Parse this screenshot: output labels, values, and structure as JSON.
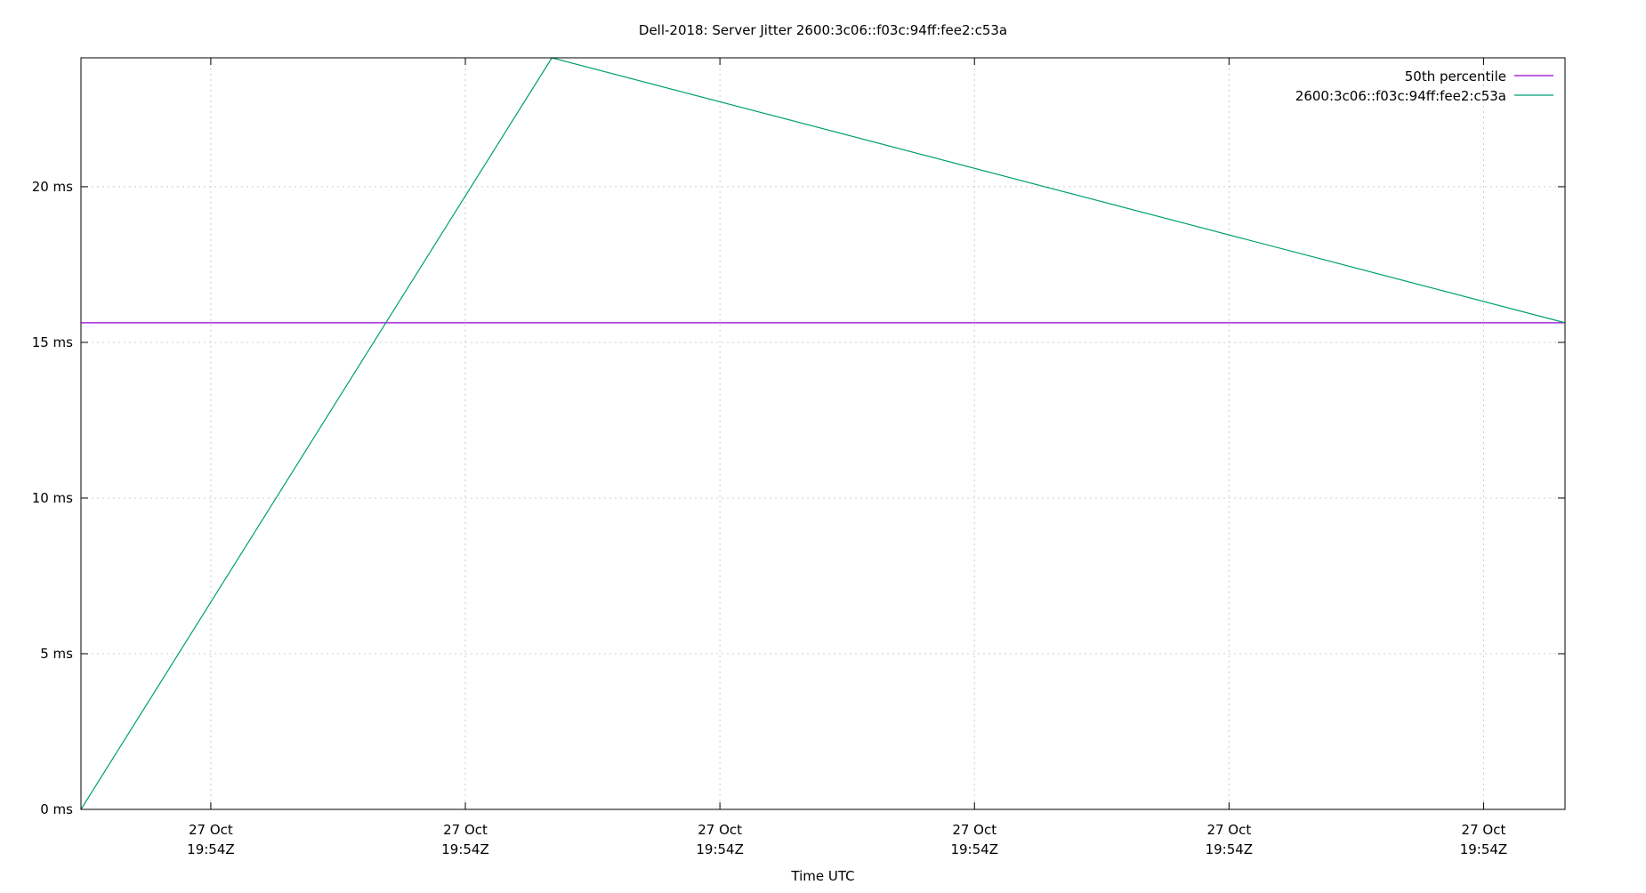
{
  "chart_data": {
    "type": "line",
    "title": "Dell-2018: Server Jitter 2600:3c06::f03c:94ff:fee2:c53a",
    "xlabel": "Time UTC",
    "ylabel": "",
    "x_ticks": [
      {
        "pos": 0,
        "line1": "27 Oct",
        "line2": "19:54Z"
      },
      {
        "pos": 1,
        "line1": "27 Oct",
        "line2": "19:54Z"
      },
      {
        "pos": 2,
        "line1": "27 Oct",
        "line2": "19:54Z"
      },
      {
        "pos": 3,
        "line1": "27 Oct",
        "line2": "19:54Z"
      },
      {
        "pos": 4,
        "line1": "27 Oct",
        "line2": "19:54Z"
      },
      {
        "pos": 5,
        "line1": "27 Oct",
        "line2": "19:54Z"
      }
    ],
    "xlim": [
      -0.51,
      5.32
    ],
    "y_ticks": [
      {
        "value": 0,
        "label": "0 ms"
      },
      {
        "value": 5,
        "label": "5 ms"
      },
      {
        "value": 10,
        "label": "10 ms"
      },
      {
        "value": 15,
        "label": "15 ms"
      },
      {
        "value": 20,
        "label": "20 ms"
      }
    ],
    "ylim": [
      0,
      24.14
    ],
    "grid": true,
    "legend_placement": "top-right",
    "series": [
      {
        "name": "50th percentile",
        "color": "#9400d3",
        "points": [
          [
            -0.51,
            15.63
          ],
          [
            5.32,
            15.63
          ]
        ]
      },
      {
        "name": "2600:3c06::f03c:94ff:fee2:c53a",
        "color": "#009e73",
        "points": [
          [
            -0.51,
            0
          ],
          [
            1.34,
            24.14
          ],
          [
            5.32,
            15.63
          ]
        ]
      }
    ]
  }
}
